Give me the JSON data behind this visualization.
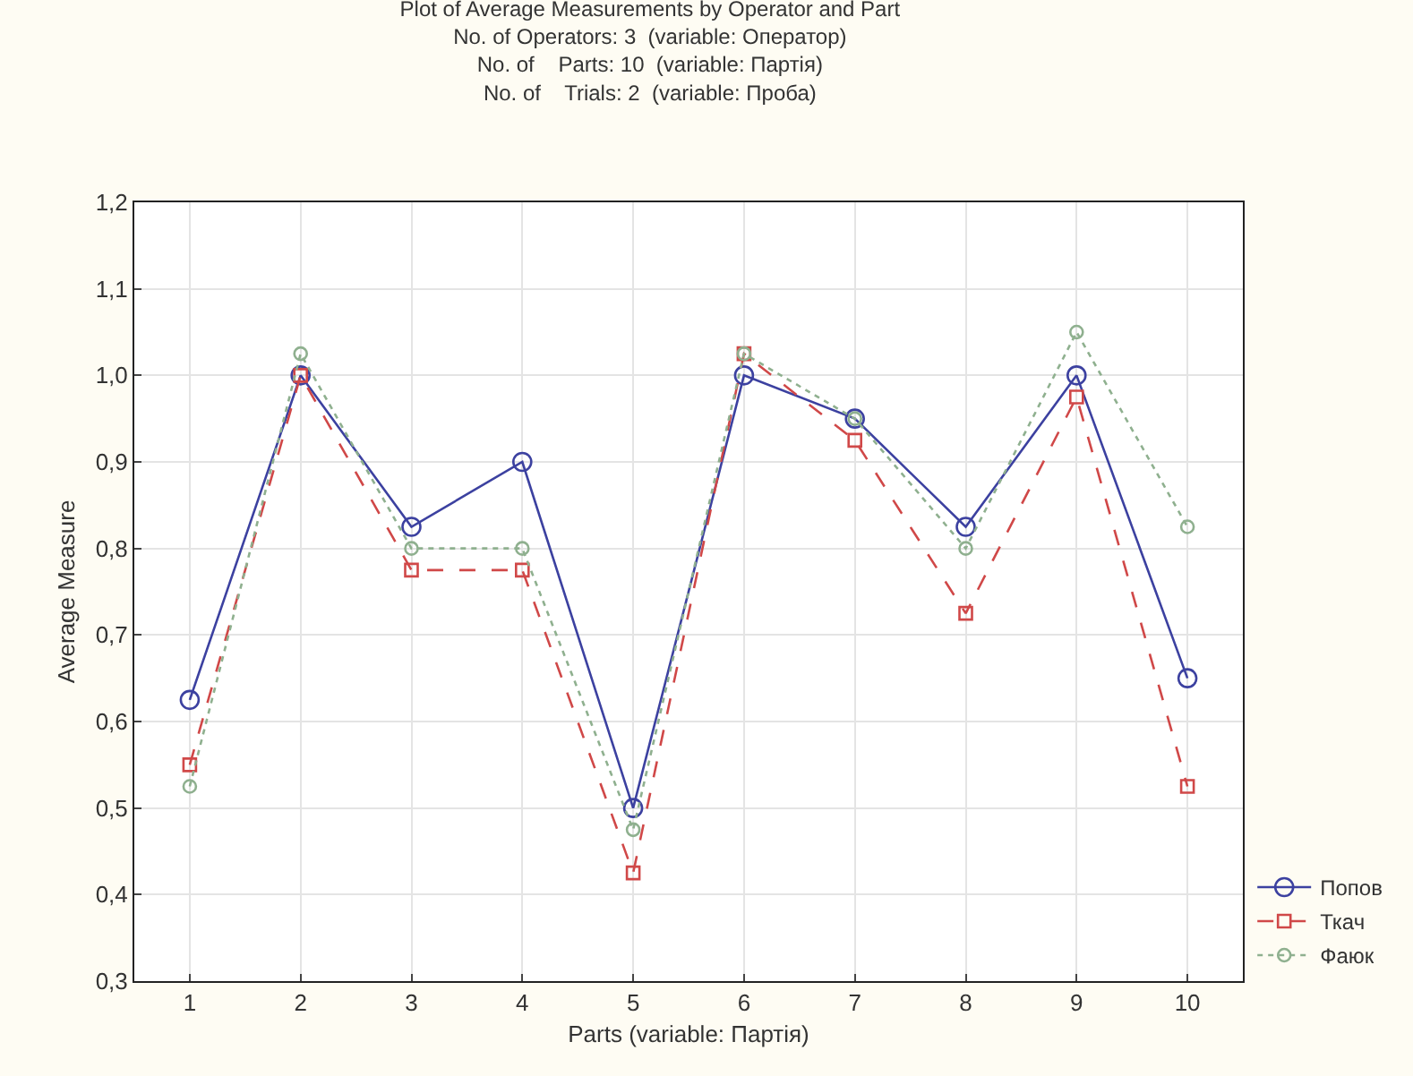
{
  "chart_data": {
    "type": "line",
    "title": "Plot of Average Measurements by Operator and Part",
    "subtitle": "No. of Operators: 3  (variable: Оператор)\nNo. of    Parts: 10  (variable: Партія)\nNo. of    Trials: 2  (variable: Проба)",
    "xlabel": "Parts (variable: Партія)",
    "ylabel": "Average Measure",
    "x": [
      1,
      2,
      3,
      4,
      5,
      6,
      7,
      8,
      9,
      10
    ],
    "series": [
      {
        "name": "Попов",
        "color": "#3c41a0",
        "marker": "circle",
        "line_style": "solid",
        "values": [
          0.625,
          1.0,
          0.825,
          0.9,
          0.5,
          1.0,
          0.95,
          0.825,
          1.0,
          0.65
        ]
      },
      {
        "name": "Ткач",
        "color": "#d04848",
        "marker": "square",
        "line_style": "dashed",
        "values": [
          0.55,
          1.0,
          0.775,
          0.775,
          0.425,
          1.025,
          0.925,
          0.725,
          0.975,
          0.525
        ]
      },
      {
        "name": "Фаюк",
        "color": "#8fb08f",
        "marker": "circle",
        "line_style": "dotted",
        "values": [
          0.525,
          1.025,
          0.8,
          0.8,
          0.475,
          1.025,
          0.95,
          0.8,
          1.05,
          0.825
        ]
      }
    ],
    "xlim": [
      0.5,
      10.5
    ],
    "xticks": [
      1,
      2,
      3,
      4,
      5,
      6,
      7,
      8,
      9,
      10
    ],
    "ylim": [
      0.3,
      1.2
    ],
    "yticks": [
      {
        "value": 0.3,
        "label": "0,3"
      },
      {
        "value": 0.4,
        "label": "0,4"
      },
      {
        "value": 0.5,
        "label": "0,5"
      },
      {
        "value": 0.6,
        "label": "0,6"
      },
      {
        "value": 0.7,
        "label": "0,7"
      },
      {
        "value": 0.8,
        "label": "0,8"
      },
      {
        "value": 0.9,
        "label": "0,9"
      },
      {
        "value": 1.0,
        "label": "1,0"
      },
      {
        "value": 1.1,
        "label": "1,1"
      },
      {
        "value": 1.2,
        "label": "1,2"
      }
    ],
    "grid": true,
    "legend": "bottom right"
  }
}
